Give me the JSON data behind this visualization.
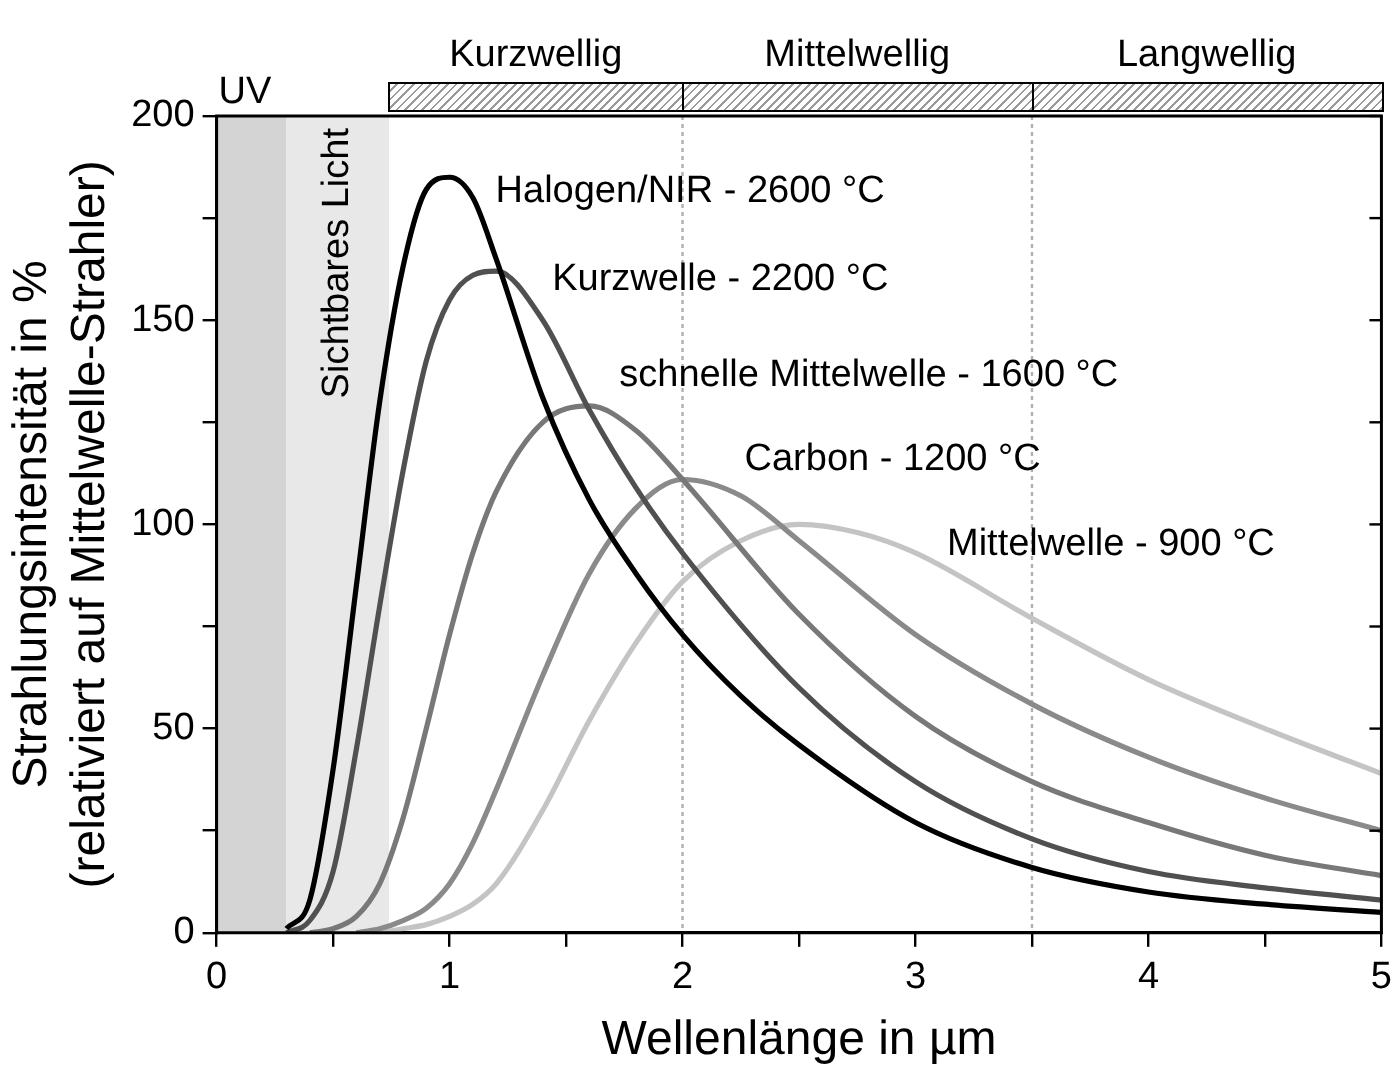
{
  "chart_data": {
    "type": "line",
    "xlabel": "Wellenlänge in µm",
    "ylabel": "Strahlungsintensität in %\n(relativiert auf Mittelwelle-Strahler)",
    "xlim": [
      0,
      5
    ],
    "xticks": [
      0,
      {
        "value": 0.5,
        "label": null
      },
      1,
      {
        "value": 1.5,
        "label": null
      },
      2,
      {
        "value": 2.5,
        "label": null
      },
      3,
      {
        "value": 3.5,
        "label": null
      },
      4,
      {
        "value": 4.5,
        "label": null
      },
      5
    ],
    "ylim": [
      0,
      200
    ],
    "yticks": [
      0,
      {
        "value": 25,
        "label": null
      },
      50,
      {
        "value": 75,
        "label": null
      },
      100,
      {
        "value": 125,
        "label": null
      },
      150,
      {
        "value": 175,
        "label": null
      },
      200
    ],
    "grid": false,
    "legend": false,
    "annotations": [
      "Kurzwellig",
      "Mittelwellig",
      "Langwellig"
    ],
    "bands": [
      {
        "axis": "x",
        "from": 0,
        "to": 0.3,
        "label": "UV",
        "color": "#d4d4d4"
      },
      {
        "axis": "x",
        "from": 0.3,
        "to": 0.74,
        "label": "Sichtbares Licht",
        "color": "#e8e8e8"
      }
    ],
    "ref_lines": [
      {
        "axis": "x",
        "value": 2,
        "color": "#b0b0b0",
        "line_style": "dotted"
      },
      {
        "axis": "x",
        "value": 3.5,
        "color": "#b0b0b0",
        "line_style": "dotted"
      }
    ],
    "series": [
      {
        "name": "Halogen/NIR - 2600 °C",
        "color": "#000000",
        "x": [
          0.3,
          0.4,
          0.5,
          0.6,
          0.7,
          0.8,
          0.9,
          1.0,
          1.1,
          1.2,
          1.4,
          1.6,
          1.8,
          2.0,
          2.25,
          2.5,
          3.0,
          3.5,
          4.0,
          4.5,
          5.0
        ],
        "values": [
          1,
          8,
          40,
          85,
          130,
          163,
          182,
          185,
          180,
          165,
          131,
          106,
          88,
          73,
          58,
          46,
          27,
          16,
          10,
          7,
          5
        ]
      },
      {
        "name": "Kurzwelle - 2200 °C",
        "color": "#505050",
        "x": [
          0.3,
          0.4,
          0.5,
          0.6,
          0.7,
          0.8,
          0.9,
          1.0,
          1.1,
          1.2,
          1.4,
          1.6,
          1.8,
          2.0,
          2.5,
          3.0,
          3.5,
          4.0,
          4.5,
          5.0
        ],
        "values": [
          0,
          3,
          15,
          45,
          80,
          113,
          140,
          155,
          161,
          162,
          150,
          128,
          109,
          93,
          60,
          37,
          23,
          15,
          11,
          8
        ]
      },
      {
        "name": "schnelle Mittelwelle - 1600 °C",
        "color": "#787878",
        "x": [
          0.4,
          0.5,
          0.6,
          0.7,
          0.8,
          0.9,
          1.0,
          1.1,
          1.2,
          1.4,
          1.6,
          1.8,
          2.0,
          2.5,
          3.0,
          3.5,
          4.0,
          4.5,
          5.0
        ],
        "values": [
          0,
          1,
          4,
          12,
          28,
          50,
          73,
          93,
          108,
          125,
          129,
          123,
          111,
          78,
          53,
          37,
          27,
          19,
          14
        ]
      },
      {
        "name": "Carbon - 1200 °C",
        "color": "#8a8a8a",
        "x": [
          0.6,
          0.7,
          0.8,
          0.9,
          1.0,
          1.1,
          1.2,
          1.4,
          1.6,
          1.8,
          2.0,
          2.25,
          2.5,
          3.0,
          3.5,
          4.0,
          4.5,
          5.0
        ],
        "values": [
          0,
          1,
          3,
          6,
          12,
          22,
          35,
          63,
          88,
          104,
          111,
          107,
          96,
          73,
          56,
          43,
          33,
          25
        ]
      },
      {
        "name": "Mittelwelle - 900 °C",
        "color": "#c4c4c4",
        "x": [
          0.7,
          0.8,
          0.9,
          1.0,
          1.1,
          1.2,
          1.4,
          1.6,
          1.8,
          2.0,
          2.25,
          2.5,
          2.75,
          3.0,
          3.5,
          4.0,
          4.5,
          5.0
        ],
        "values": [
          0,
          1,
          2,
          4,
          7,
          12,
          30,
          52,
          71,
          86,
          96,
          100,
          98,
          93,
          77,
          62,
          50,
          39
        ]
      }
    ]
  }
}
